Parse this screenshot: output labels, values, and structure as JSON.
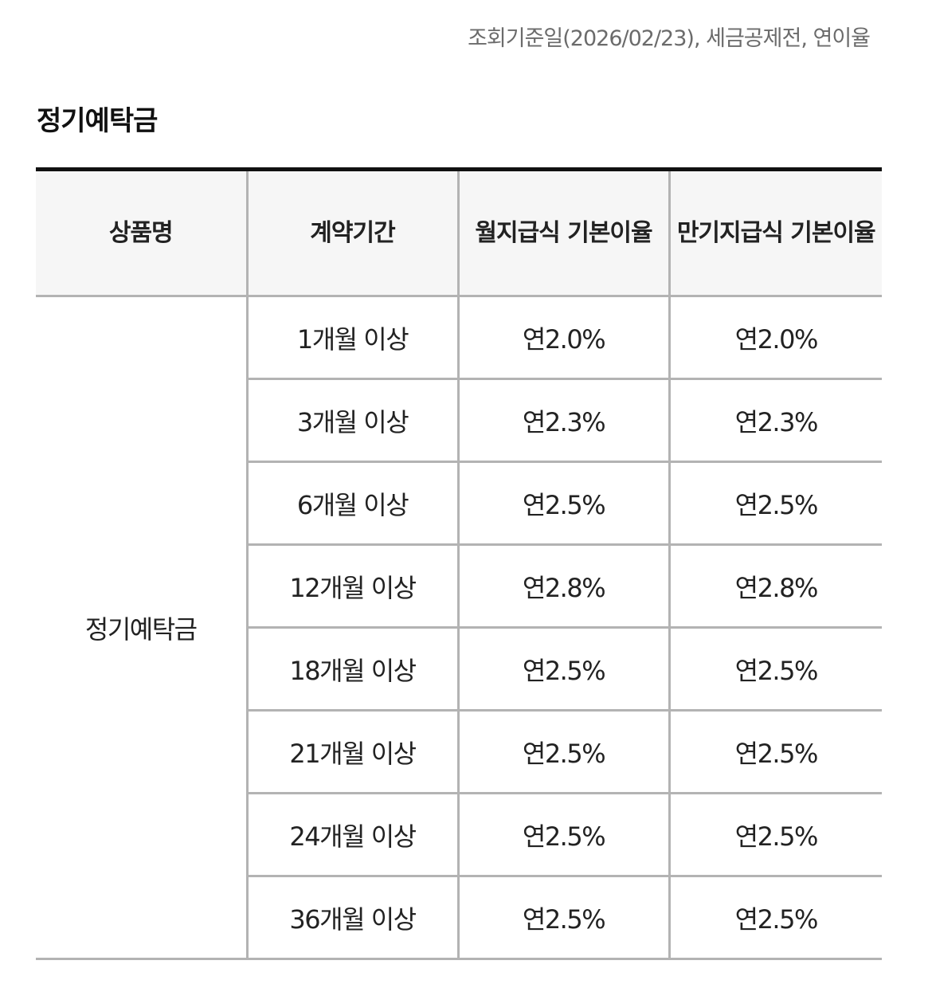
{
  "notice": "조회기준일(2026/02/23), 세금공제전, 연이율",
  "section_title": "정기예탁금",
  "table": {
    "headers": [
      "상품명",
      "계약기간",
      "월지급식 기본이율",
      "만기지급식 기본이율"
    ],
    "product_name": "정기예탁금",
    "rows": [
      {
        "term": "1개월 이상",
        "monthly": "연2.0%",
        "maturity": "연2.0%"
      },
      {
        "term": "3개월 이상",
        "monthly": "연2.3%",
        "maturity": "연2.3%"
      },
      {
        "term": "6개월 이상",
        "monthly": "연2.5%",
        "maturity": "연2.5%"
      },
      {
        "term": "12개월 이상",
        "monthly": "연2.8%",
        "maturity": "연2.8%"
      },
      {
        "term": "18개월 이상",
        "monthly": "연2.5%",
        "maturity": "연2.5%"
      },
      {
        "term": "21개월 이상",
        "monthly": "연2.5%",
        "maturity": "연2.5%"
      },
      {
        "term": "24개월 이상",
        "monthly": "연2.5%",
        "maturity": "연2.5%"
      },
      {
        "term": "36개월 이상",
        "monthly": "연2.5%",
        "maturity": "연2.5%"
      }
    ]
  }
}
